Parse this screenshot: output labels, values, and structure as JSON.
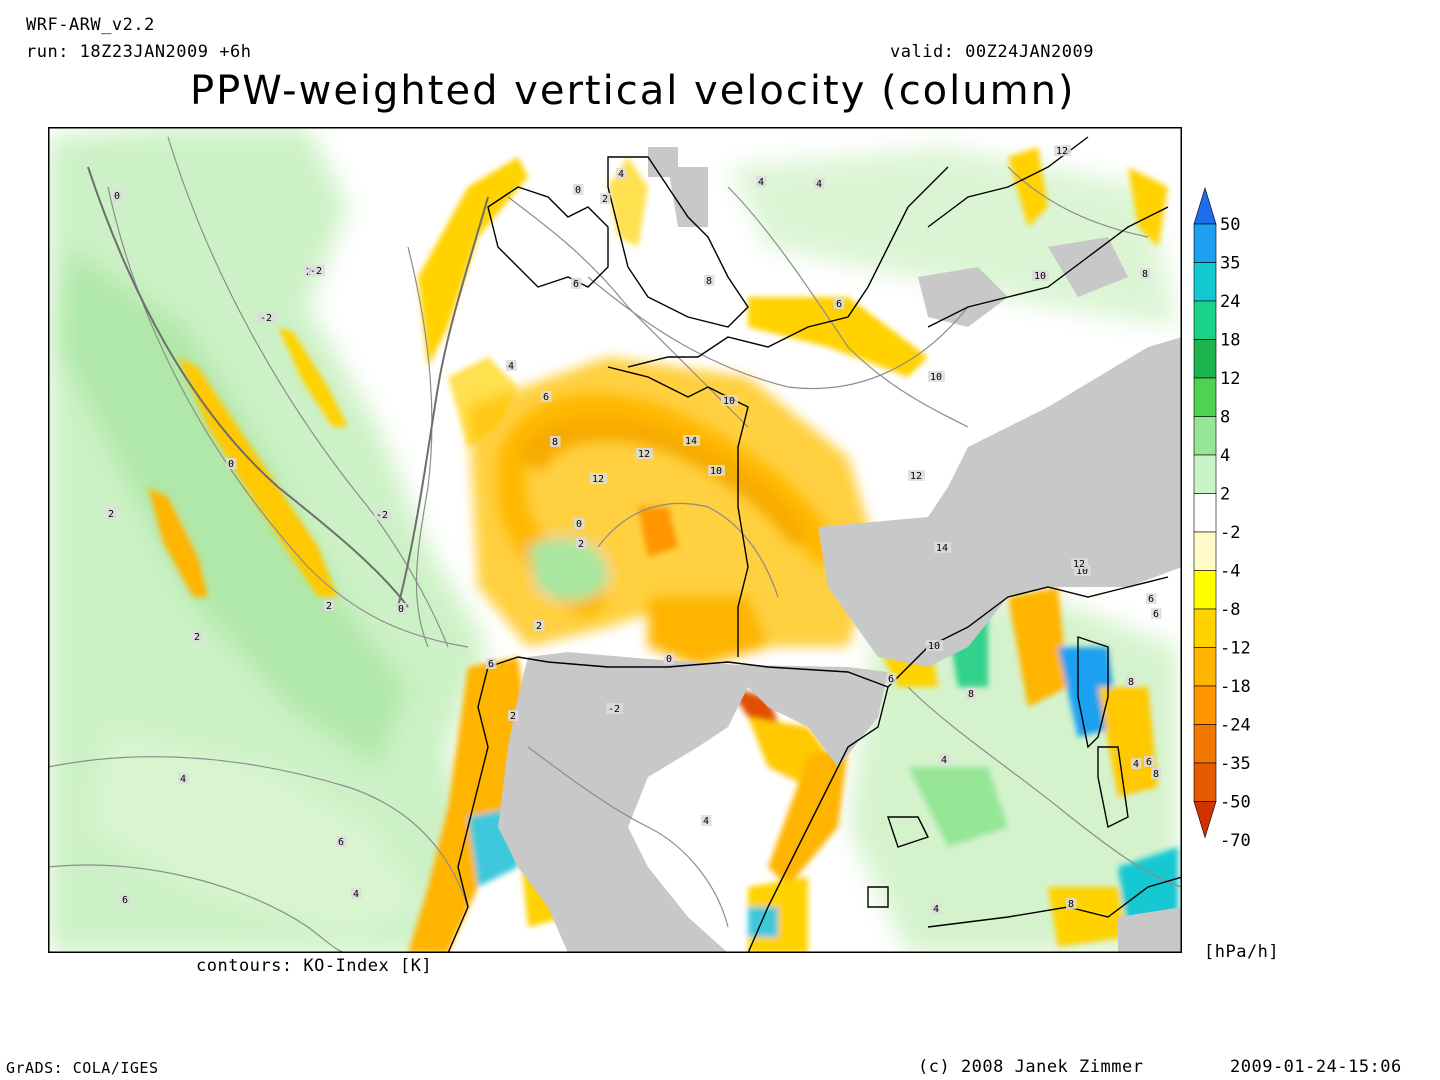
{
  "header": {
    "model": "WRF-ARW_v2.2",
    "run": "run: 18Z23JAN2009 +6h",
    "valid": "valid: 00Z24JAN2009",
    "title": "PPW-weighted vertical velocity (column)"
  },
  "map": {
    "region": "Western Europe, Iberia and North-East Atlantic",
    "shaded_field": "PPW-weighted vertical velocity",
    "contour_field": "KO-Index",
    "contour_labels": [
      "0",
      "0",
      "0",
      "0",
      "0",
      "0",
      "2",
      "2",
      "2",
      "2",
      "2",
      "2",
      "2",
      "2",
      "4",
      "4",
      "4",
      "4",
      "4",
      "4",
      "4",
      "4",
      "4",
      "4",
      "6",
      "6",
      "6",
      "6",
      "6",
      "6",
      "6",
      "6",
      "6",
      "6",
      "8",
      "8",
      "8",
      "8",
      "8",
      "8",
      "8",
      "10",
      "10",
      "10",
      "10",
      "10",
      "10",
      "12",
      "12",
      "12",
      "12",
      "12",
      "14",
      "14",
      "-2",
      "-2",
      "-2",
      "-2"
    ],
    "colors": {
      "terrain_masked": "#c8c8c8",
      "coastline": "#000000",
      "contour_line": "#8c8c8c"
    }
  },
  "colorbar": {
    "labels": [
      "50",
      "35",
      "24",
      "18",
      "12",
      "8",
      "4",
      "2",
      "-2",
      "-4",
      "-8",
      "-12",
      "-18",
      "-24",
      "-35",
      "-50",
      "-70"
    ],
    "colors": [
      "#1e6eeb",
      "#1ea0f0",
      "#14c8d2",
      "#19d28c",
      "#1eb450",
      "#50d250",
      "#96e696",
      "#c8f5c8",
      "#ffffff",
      "#fffac8",
      "#ffff00",
      "#ffd200",
      "#ffb400",
      "#ff9600",
      "#f07800",
      "#e65a00",
      "#d23200"
    ],
    "units": "[hPa/h]"
  },
  "footer": {
    "contours_note": "contours: KO-Index [K]",
    "software": "GrADS: COLA/IGES",
    "copyright": "(c) 2008 Janek Zimmer",
    "timestamp": "2009-01-24-15:06"
  }
}
